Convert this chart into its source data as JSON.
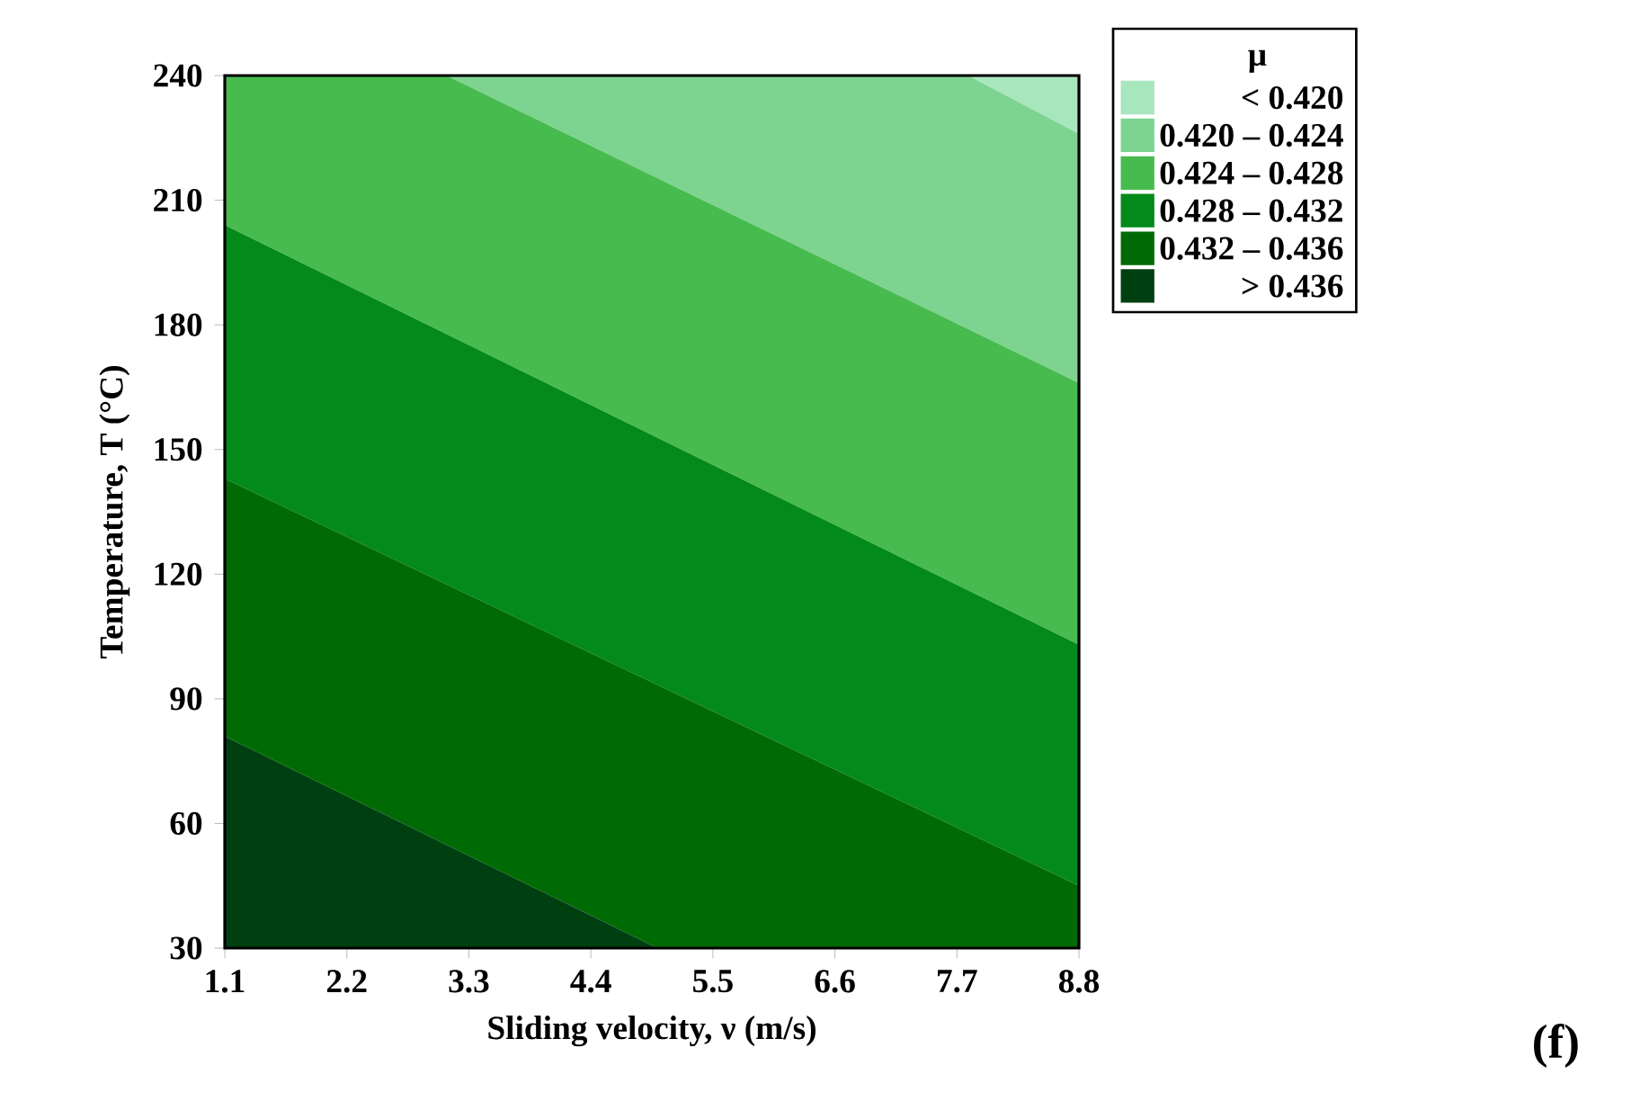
{
  "chart_data": {
    "type": "area",
    "xlabel": "Sliding velocity, ν (m/s)",
    "ylabel": "Temperature, T (°C)",
    "legend_title": "μ",
    "legend": "right",
    "grid": false,
    "xlim": [
      1.1,
      8.8
    ],
    "ylim": [
      30,
      240
    ],
    "xticks": [
      1.1,
      2.2,
      3.3,
      4.4,
      5.5,
      6.6,
      7.7,
      8.8
    ],
    "yticks": [
      30,
      60,
      90,
      120,
      150,
      180,
      210,
      240
    ],
    "series": [
      {
        "name": "< 0.420",
        "color": "#a8e6be",
        "x": [
          1.1,
          8.8
        ],
        "values": [
          240,
          240
        ]
      },
      {
        "name": "0.420 – 0.424",
        "color": "#7dd491",
        "x": [
          1.1,
          7.8,
          8.8
        ],
        "values": [
          240,
          240,
          226
        ]
      },
      {
        "name": "0.424 – 0.428",
        "color": "#48bb4f",
        "x": [
          1.1,
          3.1,
          8.8
        ],
        "values": [
          240,
          240,
          166
        ]
      },
      {
        "name": "0.428 – 0.432",
        "color": "#038a1b",
        "x": [
          1.1,
          8.8
        ],
        "values": [
          204,
          103
        ]
      },
      {
        "name": "0.432 – 0.436",
        "color": "#006b05",
        "x": [
          1.1,
          8.8
        ],
        "values": [
          143,
          45
        ]
      },
      {
        "name": "> 0.436",
        "color": "#004010",
        "x": [
          1.1,
          5.0
        ],
        "values": [
          81,
          30
        ]
      }
    ],
    "annotations": [
      "(f)"
    ]
  }
}
